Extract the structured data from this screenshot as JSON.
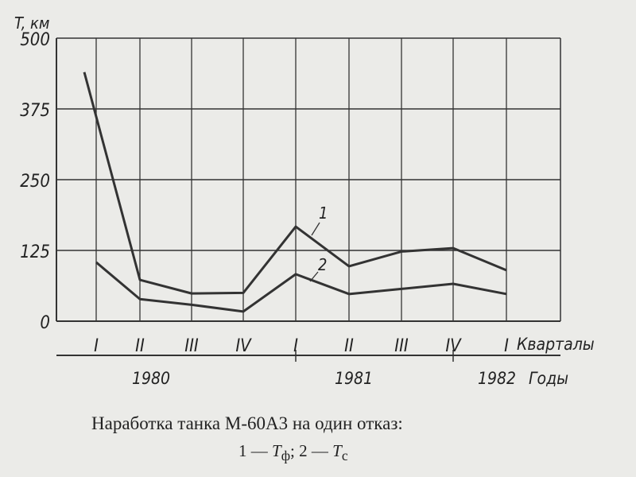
{
  "chart_data": {
    "type": "line",
    "ylabel": "T, км",
    "xlabel": "Кварталы",
    "year_axis_label": "Годы",
    "yticks": [
      "500",
      "375",
      "250",
      "125",
      "0"
    ],
    "ytick_values": [
      500,
      375,
      250,
      125,
      0
    ],
    "ylim": [
      0,
      500
    ],
    "grid": true,
    "categories": [
      "I",
      "II",
      "III",
      "IV",
      "I",
      "II",
      "III",
      "IV",
      "I"
    ],
    "years": [
      {
        "label": "1980",
        "quarters": [
          0,
          3
        ]
      },
      {
        "label": "1981",
        "quarters": [
          4,
          7
        ]
      },
      {
        "label": "1982",
        "quarters": [
          8,
          8
        ]
      }
    ],
    "series": [
      {
        "name": "1",
        "values": [
          440,
          73,
          49,
          50,
          167,
          97,
          123,
          129,
          90
        ]
      },
      {
        "name": "2",
        "values": [
          104,
          39,
          29,
          17,
          83,
          48,
          57,
          66,
          48
        ]
      }
    ],
    "title": "Наработка танка М-60А3 на один отказ:",
    "legend": {
      "item1_num": "1",
      "item1_sym": "T",
      "item1_sub": "ф",
      "item2_num": "2",
      "item2_sym": "T",
      "item2_sub": "с"
    },
    "line_color": "#333333"
  }
}
